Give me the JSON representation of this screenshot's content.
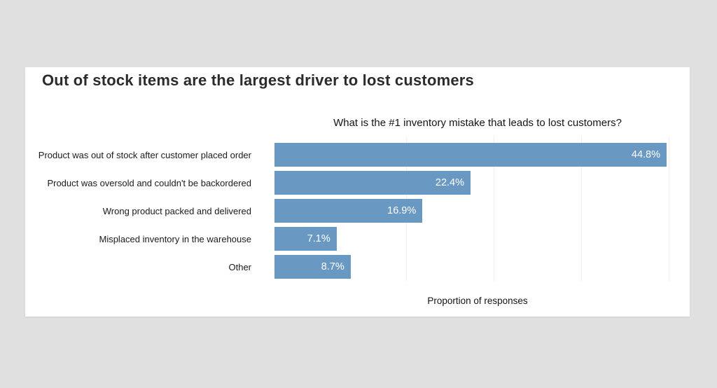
{
  "page": {
    "background_color": "#e0e0e0",
    "card_background_color": "#ffffff"
  },
  "header": {
    "title": "Out of stock items are the largest driver to lost customers"
  },
  "chart_data": {
    "type": "bar",
    "orientation": "horizontal",
    "title": "What is the #1 inventory mistake that leads to lost customers?",
    "xlabel": "Proportion of responses",
    "ylabel": "",
    "categories": [
      "Product was out of stock after customer placed order",
      "Product was oversold and couldn't be backordered",
      "Wrong product packed and delivered",
      "Misplaced inventory in the warehouse",
      "Other"
    ],
    "values": [
      44.8,
      22.4,
      16.9,
      7.1,
      8.7
    ],
    "value_labels": [
      "44.8%",
      "22.4%",
      "16.9%",
      "7.1%",
      "8.7%"
    ],
    "xlim": [
      0,
      46.4
    ],
    "gridline_values": [
      15,
      25,
      35,
      45
    ],
    "grid": "faint vertical gridlines, no x tick labels",
    "legend": "none",
    "bar_color": "#6999c3",
    "value_label_color": "#ffffff",
    "gridline_color": "#f0f0f0"
  }
}
